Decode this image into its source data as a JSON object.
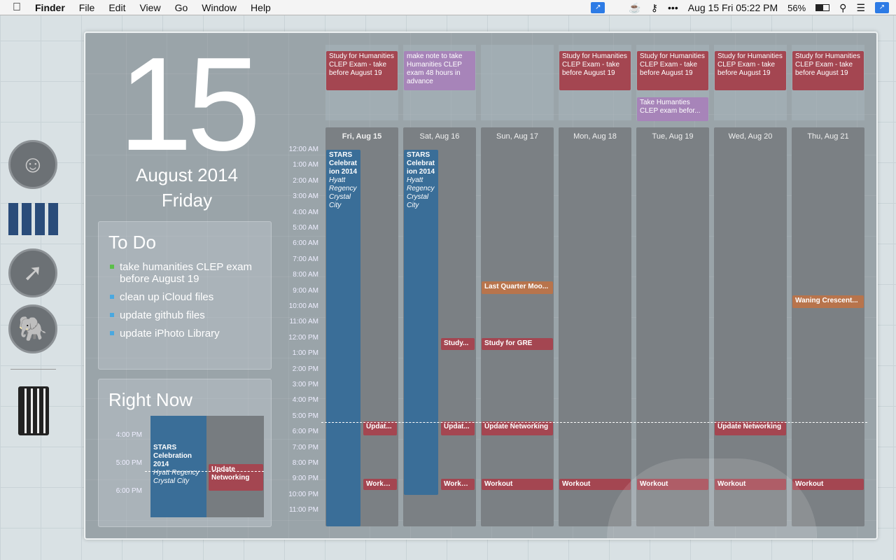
{
  "menubar": {
    "app": "Finder",
    "items": [
      "File",
      "Edit",
      "View",
      "Go",
      "Window",
      "Help"
    ],
    "clock": "Aug 15 Fri 05:22 PM",
    "battery": "56%"
  },
  "date": {
    "day": "15",
    "month_year": "August 2014",
    "weekday": "Friday"
  },
  "todo": {
    "title": "To Do",
    "items": [
      {
        "text": "take humanities CLEP exam before August 19",
        "color": "#5bbf4a"
      },
      {
        "text": "clean up iCloud files",
        "color": "#4aa8e0"
      },
      {
        "text": "update github files",
        "color": "#4aa8e0"
      },
      {
        "text": "update iPhoto Library",
        "color": "#4aa8e0"
      }
    ]
  },
  "right_now": {
    "title": "Right Now",
    "hours": [
      "4:00 PM",
      "5:00 PM",
      "6:00 PM"
    ],
    "event1_title": "STARS Celebration 2014",
    "event1_location": "Hyatt Regency Crystal City",
    "event2_title": "Update Networking"
  },
  "calendar": {
    "hours": [
      "12:00 AM",
      "1:00 AM",
      "2:00 AM",
      "3:00 AM",
      "4:00 AM",
      "5:00 AM",
      "6:00 AM",
      "7:00 AM",
      "8:00 AM",
      "9:00 AM",
      "10:00 AM",
      "11:00 AM",
      "12:00 PM",
      "1:00 PM",
      "2:00 PM",
      "3:00 PM",
      "4:00 PM",
      "5:00 PM",
      "6:00 PM",
      "7:00 PM",
      "8:00 PM",
      "9:00 PM",
      "10:00 PM",
      "11:00 PM"
    ],
    "now_hour": 17.37,
    "days": [
      {
        "label": "Fri, Aug 15",
        "allday": [
          {
            "title": "Study for Humanities CLEP Exam - take before August 19",
            "color": "red"
          }
        ],
        "events": [
          {
            "title": "STARS Celebration 2014",
            "location": "Hyatt Regency Crystal City",
            "start": 0,
            "end": 24,
            "color": "blue",
            "lane": 0
          },
          {
            "title": "Updat...",
            "start": 17.3,
            "end": 18.2,
            "color": "red",
            "lane": 1
          },
          {
            "title": "Workout",
            "start": 21,
            "end": 21.7,
            "color": "red",
            "lane": 1
          }
        ]
      },
      {
        "label": "Sat, Aug 16",
        "allday": [
          {
            "title": "make note to take Humanities CLEP exam 48 hours in advance",
            "color": "purple"
          }
        ],
        "events": [
          {
            "title": "STARS Celebration 2014",
            "location": "Hyatt Regency Crystal City",
            "start": 0,
            "end": 22,
            "color": "blue",
            "lane": 0
          },
          {
            "title": "Study...",
            "start": 12,
            "end": 12.75,
            "color": "red",
            "lane": 1
          },
          {
            "title": "Updat...",
            "start": 17.3,
            "end": 18.2,
            "color": "red",
            "lane": 1
          },
          {
            "title": "Workout",
            "start": 21,
            "end": 21.7,
            "color": "red",
            "lane": 1
          }
        ]
      },
      {
        "label": "Sun, Aug 17",
        "allday": [],
        "events": [
          {
            "title": "Last Quarter Moo...",
            "start": 8.4,
            "end": 9.2,
            "color": "orange"
          },
          {
            "title": "Study for GRE",
            "start": 12,
            "end": 12.75,
            "color": "red"
          },
          {
            "title": "Update Networking",
            "start": 17.3,
            "end": 18.2,
            "color": "red"
          },
          {
            "title": "Workout",
            "start": 21,
            "end": 21.7,
            "color": "red"
          }
        ]
      },
      {
        "label": "Mon, Aug 18",
        "allday": [
          {
            "title": "Study for Humanities CLEP Exam - take before August 19",
            "color": "red"
          }
        ],
        "events": [
          {
            "title": "Workout",
            "start": 21,
            "end": 21.7,
            "color": "red"
          }
        ]
      },
      {
        "label": "Tue, Aug 19",
        "allday": [
          {
            "title": "Study for Humanities CLEP Exam - take before August 19",
            "color": "red"
          },
          {
            "title": "Take Humanties CLEP exam befor...",
            "color": "purple"
          }
        ],
        "events": [
          {
            "title": "Workout",
            "start": 21,
            "end": 21.7,
            "color": "red"
          }
        ]
      },
      {
        "label": "Wed, Aug 20",
        "allday": [
          {
            "title": "Study for Humanities CLEP Exam - take before August 19",
            "color": "red"
          }
        ],
        "events": [
          {
            "title": "Update Networking",
            "start": 17.3,
            "end": 18.2,
            "color": "red"
          },
          {
            "title": "Workout",
            "start": 21,
            "end": 21.7,
            "color": "red"
          }
        ]
      },
      {
        "label": "Thu, Aug 21",
        "allday": [
          {
            "title": "Study for Humanities CLEP Exam - take before August 19",
            "color": "red"
          }
        ],
        "events": [
          {
            "title": "Waning Crescent...",
            "start": 9.3,
            "end": 10.1,
            "color": "orange"
          },
          {
            "title": "Workout",
            "start": 21,
            "end": 21.7,
            "color": "red"
          }
        ]
      }
    ]
  }
}
